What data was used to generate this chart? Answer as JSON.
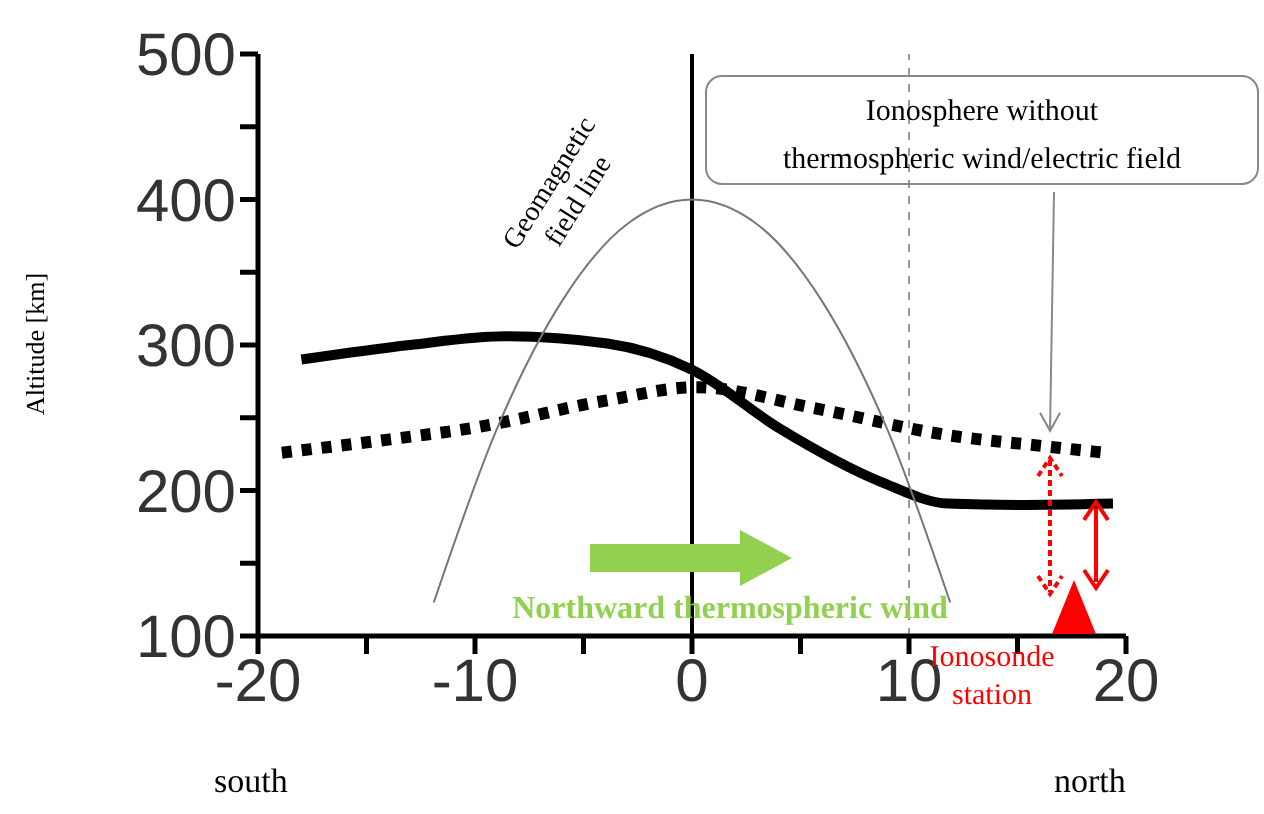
{
  "chart_data": {
    "type": "line",
    "ylabel": "Altitude [km]",
    "xlim": [
      -20,
      20
    ],
    "ylim": [
      100,
      500
    ],
    "xticks": [
      -20,
      {
        "value": -15,
        "label": null
      },
      -10,
      {
        "value": -5,
        "label": null
      },
      0,
      {
        "value": 5,
        "label": null
      },
      10,
      {
        "value": 15,
        "label": null
      },
      20
    ],
    "yticks": [
      100,
      {
        "value": 150,
        "label": null
      },
      200,
      {
        "value": 250,
        "label": null
      },
      300,
      {
        "value": 350,
        "label": null
      },
      400,
      {
        "value": 450,
        "label": null
      },
      500
    ],
    "marker": "none",
    "series": [
      {
        "color": "#000000",
        "line_style": "solid",
        "x": [
          -18,
          -13,
          -8.6,
          -3.9,
          0,
          4,
          8.7,
          11.8,
          15,
          19.4
        ],
        "values": [
          290,
          300,
          306,
          301,
          283,
          243,
          206,
          191,
          190,
          191
        ]
      },
      {
        "name": "Ionosphere without thermospheric wind/electric field",
        "color": "#000000",
        "line_style": "dotted",
        "x": [
          -18.9,
          -14,
          -10.1,
          -3.9,
          0.2,
          5.5,
          11.8,
          16.5,
          19
        ],
        "values": [
          226,
          235,
          243,
          262,
          271,
          257,
          238,
          230,
          226
        ]
      },
      {
        "name": "Geomagnetic field line",
        "color": "#777777",
        "line_style": "solid",
        "x": [
          -11.9,
          -9,
          -6,
          -3,
          0,
          3,
          6,
          9,
          11.9
        ],
        "values": [
          123,
          242,
          330,
          383,
          400,
          383,
          330,
          242,
          123
        ]
      }
    ],
    "ref_lines": [
      {
        "axis": "x",
        "value": 0,
        "color": "#000000",
        "line_style": "solid"
      },
      {
        "axis": "x",
        "value": 10,
        "color": "#999999",
        "line_style": "dashed"
      }
    ],
    "annotations": [
      "Northward thermospheric wind",
      "Ionosonde station",
      "south",
      "north"
    ]
  }
}
